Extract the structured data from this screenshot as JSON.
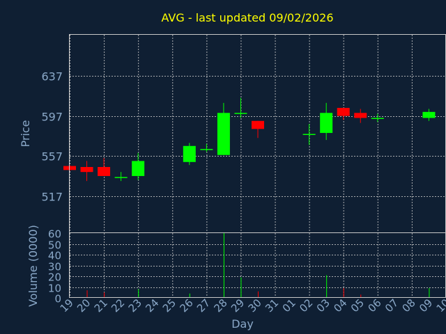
{
  "chart_data": [
    {
      "type": "candlestick",
      "title": "AVG - last updated 09/02/2026",
      "ylabel": "Price",
      "ylim": [
        480,
        678
      ],
      "yticks": [
        517,
        557,
        597,
        637
      ],
      "grid": true,
      "up_color": "#00ff00",
      "down_color": "#ff0000",
      "candles": [
        {
          "x": "19",
          "open": 547,
          "close": 543,
          "high": 548,
          "low": 542
        },
        {
          "x": "20",
          "open": 546,
          "close": 541,
          "high": 552,
          "low": 532
        },
        {
          "x": "21",
          "open": 546,
          "close": 537,
          "high": 555,
          "low": 537
        },
        {
          "x": "22",
          "open": 536,
          "close": 536,
          "high": 541,
          "low": 532
        },
        {
          "x": "23",
          "open": 537,
          "close": 552,
          "high": 560,
          "low": 533
        },
        {
          "x": "26",
          "open": 551,
          "close": 567,
          "high": 570,
          "low": 548
        },
        {
          "x": "27",
          "open": 564,
          "close": 564,
          "high": 569,
          "low": 561
        },
        {
          "x": "28",
          "open": 558,
          "close": 600,
          "high": 610,
          "low": 558
        },
        {
          "x": "29",
          "open": 600,
          "close": 600,
          "high": 615,
          "low": 595
        },
        {
          "x": "30",
          "open": 592,
          "close": 584,
          "high": 592,
          "low": 575
        },
        {
          "x": "02",
          "open": 579,
          "close": 579,
          "high": 589,
          "low": 568
        },
        {
          "x": "03",
          "open": 580,
          "close": 600,
          "high": 610,
          "low": 573
        },
        {
          "x": "04",
          "open": 605,
          "close": 597,
          "high": 605,
          "low": 593
        },
        {
          "x": "05",
          "open": 600,
          "close": 595,
          "high": 604,
          "low": 590
        },
        {
          "x": "06",
          "open": 595,
          "close": 595,
          "high": 599,
          "low": 591
        },
        {
          "x": "09",
          "open": 595,
          "close": 601,
          "high": 604,
          "low": 592
        }
      ]
    },
    {
      "type": "bar",
      "ylabel": "Volume (0000)",
      "xlabel": "Day",
      "ylim": [
        0,
        60
      ],
      "yticks": [
        0,
        10,
        20,
        30,
        40,
        50,
        60
      ],
      "categories": [
        "19",
        "20",
        "21",
        "22",
        "23",
        "24",
        "25",
        "26",
        "27",
        "28",
        "29",
        "30",
        "31",
        "01",
        "02",
        "03",
        "04",
        "05",
        "06",
        "07",
        "08",
        "09",
        "10"
      ],
      "values": [
        {
          "x": "20",
          "value": 7,
          "color": "#ff0000"
        },
        {
          "x": "21",
          "value": 5,
          "color": "#ff0000"
        },
        {
          "x": "23",
          "value": 8,
          "color": "#00ff00"
        },
        {
          "x": "26",
          "value": 4,
          "color": "#00ff00"
        },
        {
          "x": "28",
          "value": 60,
          "color": "#00ff00"
        },
        {
          "x": "29",
          "value": 19,
          "color": "#00ff00"
        },
        {
          "x": "30",
          "value": 6,
          "color": "#ff0000"
        },
        {
          "x": "03",
          "value": 21,
          "color": "#00ff00"
        },
        {
          "x": "04",
          "value": 9,
          "color": "#ff0000"
        },
        {
          "x": "05",
          "value": 3,
          "color": "#ff0000"
        },
        {
          "x": "09",
          "value": 9,
          "color": "#00ff00"
        }
      ]
    }
  ]
}
